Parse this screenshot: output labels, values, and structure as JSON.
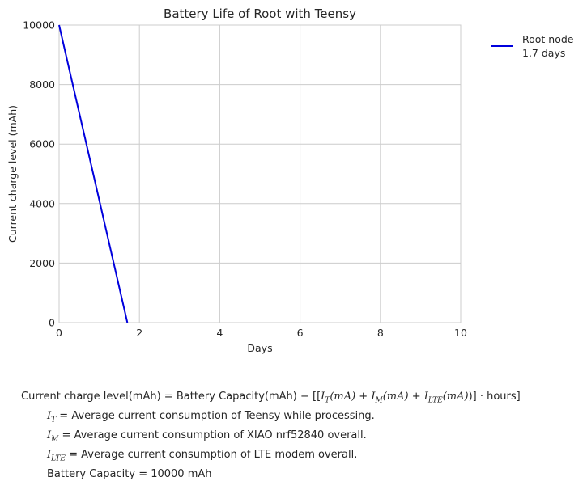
{
  "chart_data": {
    "type": "line",
    "title": "Battery Life of Root with Teensy",
    "xlabel": "Days",
    "ylabel": "Current charge level (mAh)",
    "xlim": [
      0,
      10
    ],
    "ylim": [
      0,
      10000
    ],
    "xticks": [
      0,
      2,
      4,
      6,
      8,
      10
    ],
    "yticks": [
      0,
      2000,
      4000,
      6000,
      8000,
      10000
    ],
    "grid": true,
    "legend_position": "outside-top-right",
    "series": [
      {
        "name": "Root node\n1.7 days",
        "name_lines": [
          "Root node",
          "1.7 days"
        ],
        "color": "#0000dd",
        "x": [
          0,
          1.7
        ],
        "y": [
          10000,
          0
        ]
      }
    ]
  },
  "equations": {
    "main": {
      "lhs": "Current charge level(mAh)",
      "eq": " = ",
      "cap": "Battery Capacity(mAh)",
      "minus": " − [[",
      "it": "I",
      "it_sub": "T",
      "it_unit": "(mA)",
      "plus1": " + ",
      "im": "I",
      "im_sub": "M",
      "im_unit": "(mA)",
      "plus2": " + ",
      "ilte": "I",
      "ilte_sub": "LTE",
      "ilte_unit": "(mA)",
      "close": ")] · hours]"
    },
    "defs": [
      {
        "sym": "I",
        "sub": "T",
        "text": " = Average current consumption of Teensy while processing."
      },
      {
        "sym": "I",
        "sub": "M",
        "text": " = Average current consumption of XIAO nrf52840 overall."
      },
      {
        "sym": "I",
        "sub": "LTE",
        "text": " = Average current consumption of LTE modem overall."
      }
    ],
    "capacity": "Battery Capacity = 10000 mAh"
  }
}
